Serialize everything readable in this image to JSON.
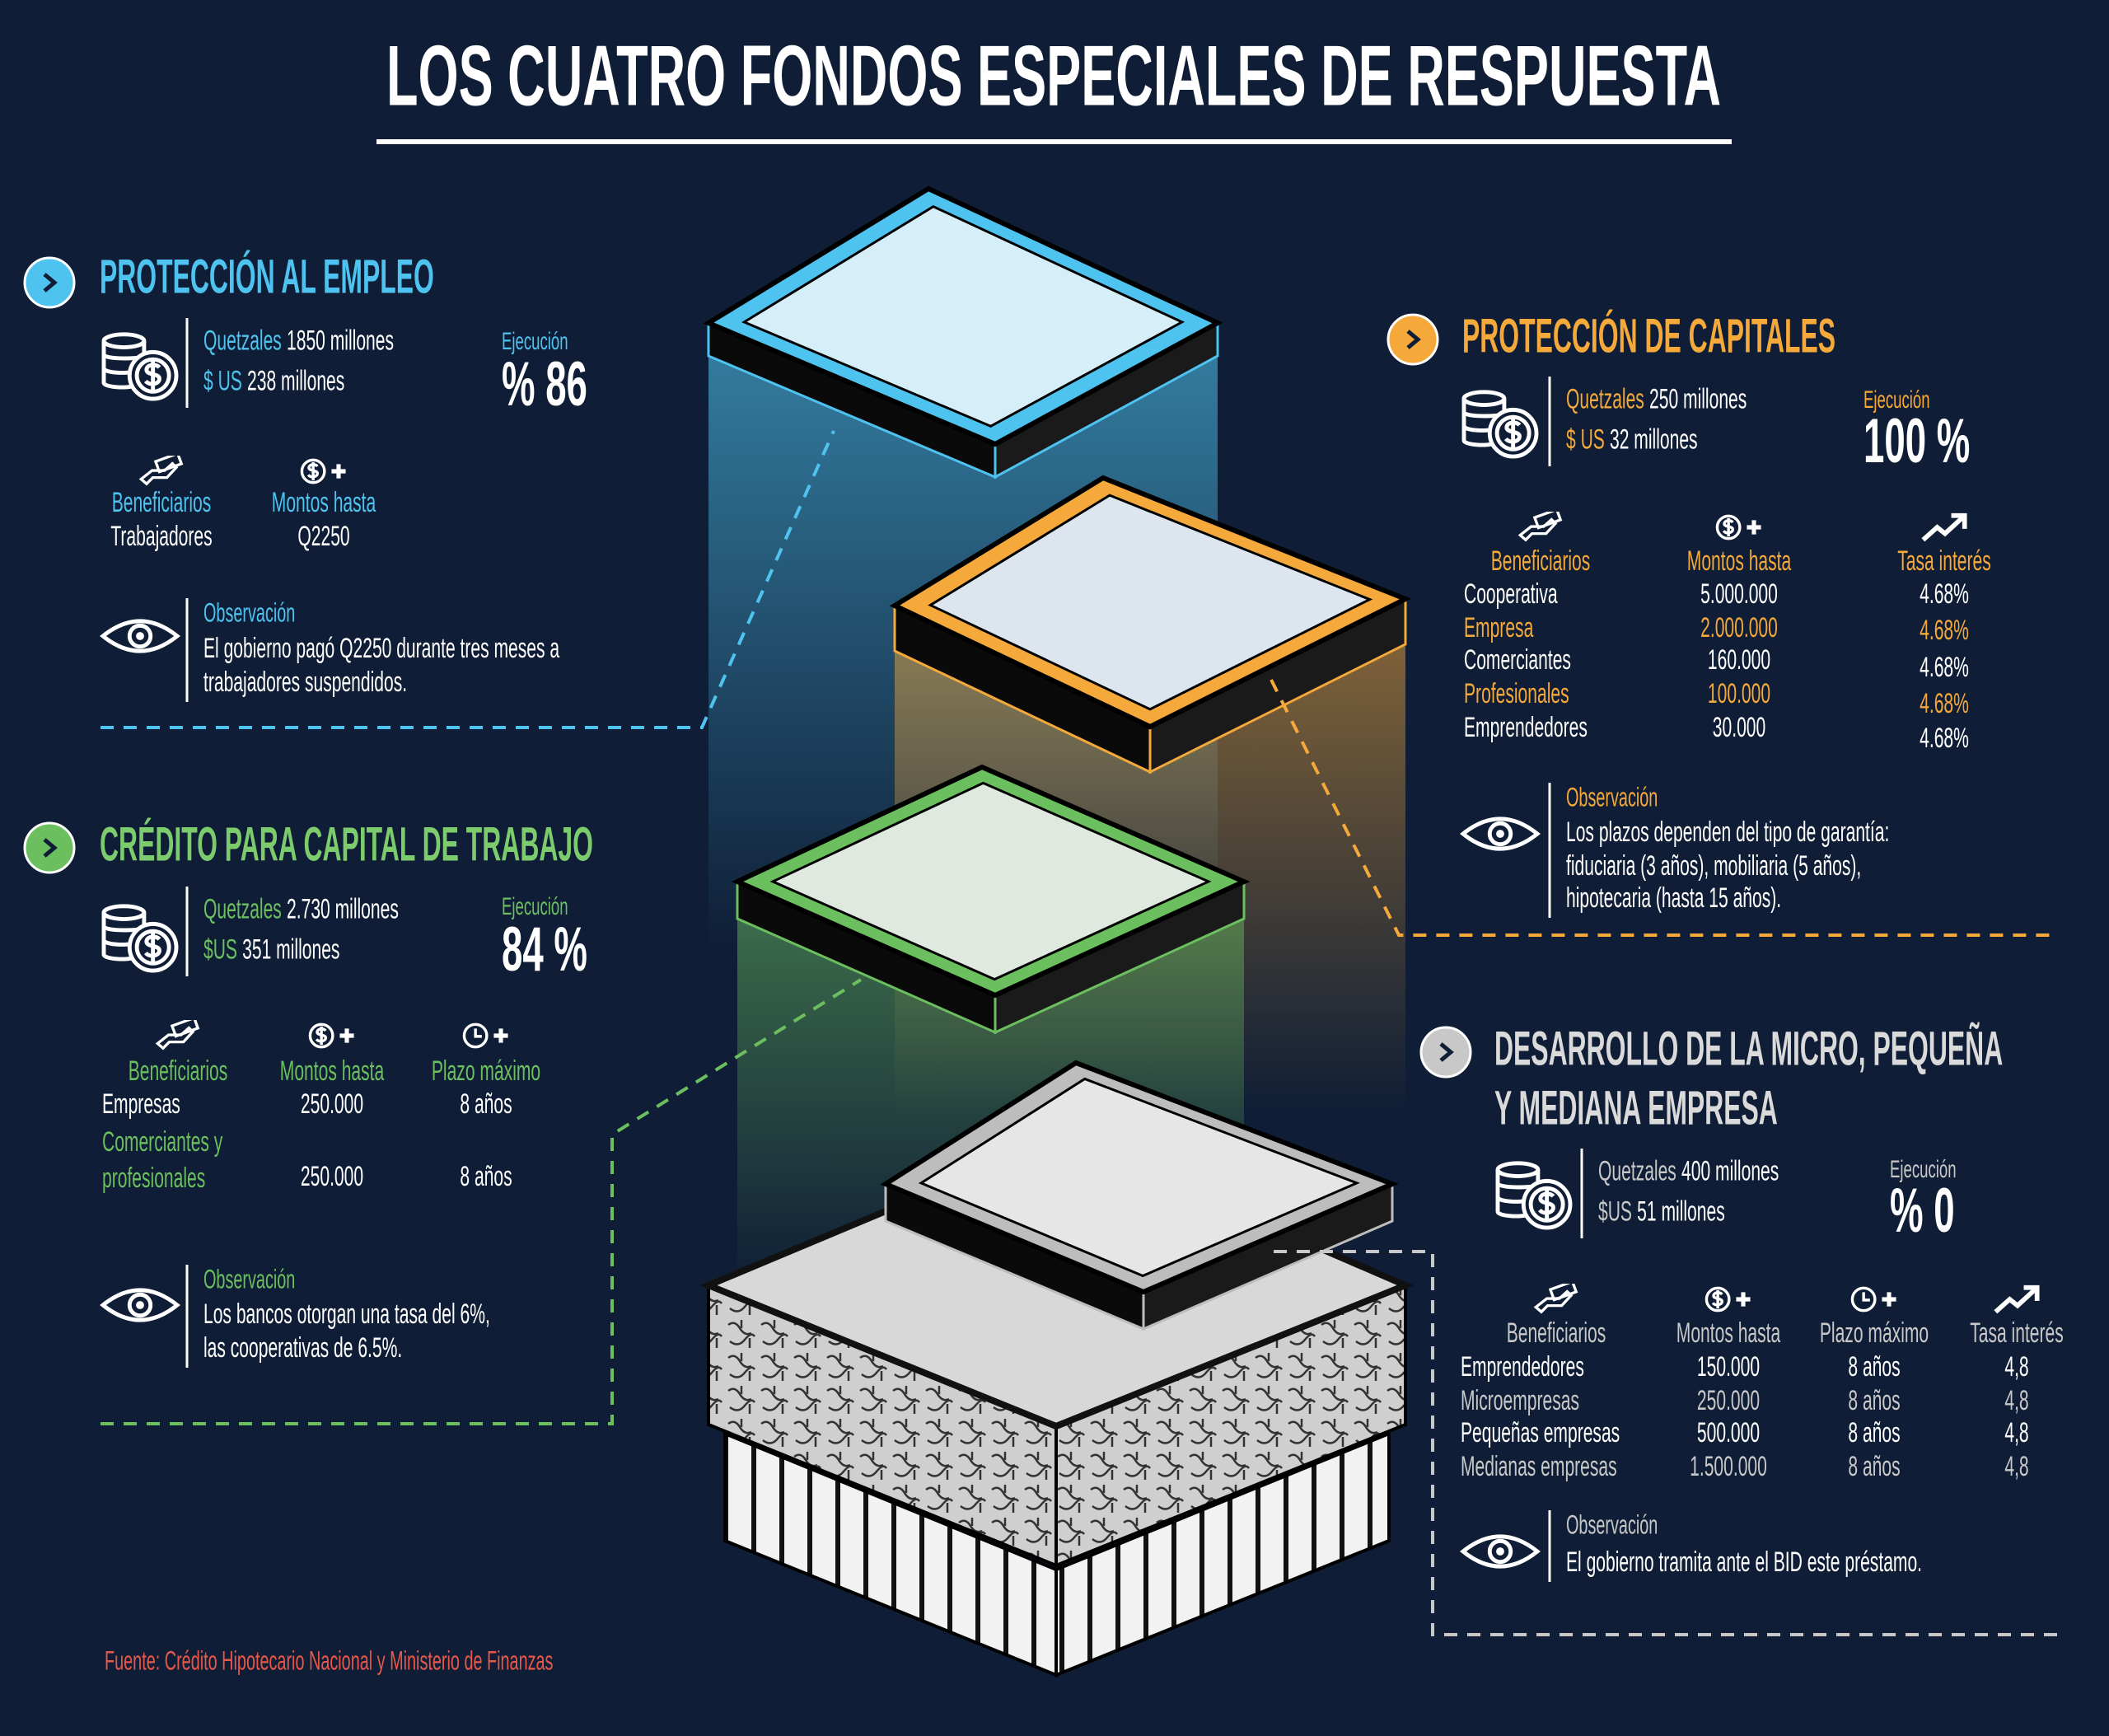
{
  "title": "LOS CUATRO FONDOS ESPECIALES DE RESPUESTA",
  "sections": [
    {
      "heading": [
        "PROTECCIÓN AL EMPLEO"
      ],
      "quetzales": {
        "label": "Quetzales",
        "value": "1850 millones"
      },
      "usd": {
        "label": "$ US",
        "value": "238 millones"
      },
      "ejecucion": {
        "label": "Ejecución",
        "value": "% 86"
      },
      "table": {
        "headers": [
          "Beneficiarios",
          "Montos hasta"
        ],
        "rows": [
          [
            "Trabajadores",
            "Q2250"
          ]
        ]
      },
      "observacion": {
        "label": "Observación",
        "lines": [
          "El gobierno pagó Q2250 durante tres meses a",
          "trabajadores suspendidos."
        ]
      }
    },
    {
      "heading": [
        "CRÉDITO PARA CAPITAL DE TRABAJO"
      ],
      "quetzales": {
        "label": "Quetzales",
        "value": "2.730 millones"
      },
      "usd": {
        "label": "$US",
        "value": "351 millones"
      },
      "ejecucion": {
        "label": "Ejecución",
        "value": "84 %"
      },
      "table": {
        "headers": [
          "Beneficiarios",
          "Montos hasta",
          "Plazo máximo"
        ],
        "rows": [
          [
            "Empresas",
            "250.000",
            "8 años"
          ],
          [
            [
              "Comerciantes y",
              "profesionales"
            ],
            "250.000",
            "8 años"
          ]
        ]
      },
      "observacion": {
        "label": "Observación",
        "lines": [
          "Los bancos otorgan una tasa del 6%,",
          "las cooperativas de 6.5%."
        ]
      }
    },
    {
      "heading": [
        "PROTECCIÓN DE CAPITALES"
      ],
      "quetzales": {
        "label": "Quetzales",
        "value": "250 millones"
      },
      "usd": {
        "label": "$ US",
        "value": "32 millones"
      },
      "ejecucion": {
        "label": "Ejecución",
        "value": "100 %"
      },
      "table": {
        "headers": [
          "Beneficiarios",
          "Montos hasta",
          "Tasa interés"
        ],
        "rows": [
          [
            "Cooperativa",
            "5.000.000",
            "4.68%"
          ],
          [
            "Empresa",
            "2.000.000",
            "4.68%"
          ],
          [
            "Comerciantes",
            "160.000",
            "4.68%"
          ],
          [
            "Profesionales",
            "100.000",
            "4.68%"
          ],
          [
            "Emprendedores",
            "30.000",
            "4.68%"
          ]
        ]
      },
      "observacion": {
        "label": "Observación",
        "lines": [
          "Los plazos dependen del tipo de garantía:",
          "fiduciaria (3 años), mobiliaria (5 años),",
          "hipotecaria (hasta 15 años)."
        ]
      }
    },
    {
      "heading": [
        "DESARROLLO DE LA MICRO, PEQUEÑA",
        "Y MEDIANA EMPRESA"
      ],
      "quetzales": {
        "label": "Quetzales",
        "value": "400 millones"
      },
      "usd": {
        "label": "$US",
        "value": "51 millones"
      },
      "ejecucion": {
        "label": "Ejecución",
        "value": "% 0"
      },
      "table": {
        "headers": [
          "Beneficiarios",
          "Montos hasta",
          "Plazo máximo",
          "Tasa interés"
        ],
        "rows": [
          [
            "Emprendedores",
            "150.000",
            "8 años",
            "4,8"
          ],
          [
            "Microempresas",
            "250.000",
            "8 años",
            "4,8"
          ],
          [
            "Pequeñas empresas",
            "500.000",
            "8 años",
            "4,8"
          ],
          [
            "Medianas empresas",
            "1.500.000",
            "8 años",
            "4,8"
          ]
        ]
      },
      "observacion": {
        "label": "Observación",
        "lines": [
          "El gobierno tramita ante el BID este préstamo."
        ]
      }
    }
  ],
  "source": "Fuente: Crédito Hipotecario Nacional y Ministerio de Finanzas"
}
